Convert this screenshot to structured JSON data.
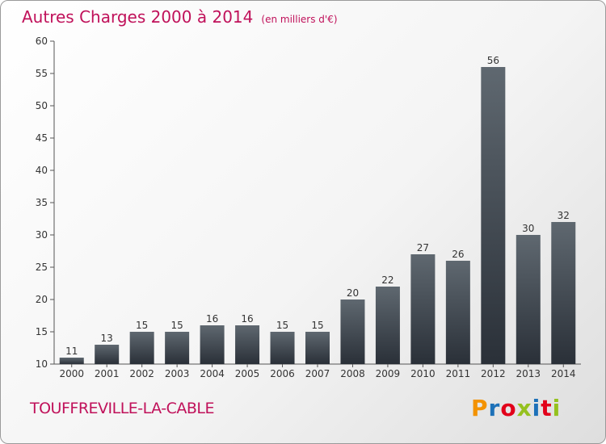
{
  "header": {
    "title": "Autres Charges 2000 à 2014",
    "subtitle": "(en milliers d'€)"
  },
  "footer": {
    "commune": "TOUFFREVILLE-LA-CABLE",
    "logo_letters": [
      "P",
      "r",
      "o",
      "x",
      "i",
      "t",
      "i"
    ],
    "logo_colors": [
      "#f39200",
      "#1d71b8",
      "#e2001a",
      "#95c11f",
      "#1d71b8",
      "#e2001a",
      "#95c11f"
    ]
  },
  "chart_data": {
    "type": "bar",
    "title": "Autres Charges 2000 à 2014",
    "subtitle": "(en milliers d'€)",
    "xlabel": "",
    "ylabel": "",
    "categories": [
      "2000",
      "2001",
      "2002",
      "2003",
      "2004",
      "2005",
      "2006",
      "2007",
      "2008",
      "2009",
      "2010",
      "2011",
      "2012",
      "2013",
      "2014"
    ],
    "values": [
      11,
      13,
      15,
      15,
      16,
      16,
      15,
      15,
      20,
      22,
      27,
      26,
      56,
      30,
      32
    ],
    "value_labels": [
      "11",
      "13",
      "15",
      "15",
      "16",
      "16",
      "15",
      "15",
      "20",
      "22",
      "27",
      "26",
      "56",
      "30",
      "32"
    ],
    "ylim": [
      10,
      60
    ],
    "yticks": [
      10,
      15,
      20,
      25,
      30,
      35,
      40,
      45,
      50,
      55,
      60
    ],
    "grid": false,
    "legend": "none",
    "bar_color_top": "#5f6870",
    "bar_color_bottom": "#2a3038"
  }
}
